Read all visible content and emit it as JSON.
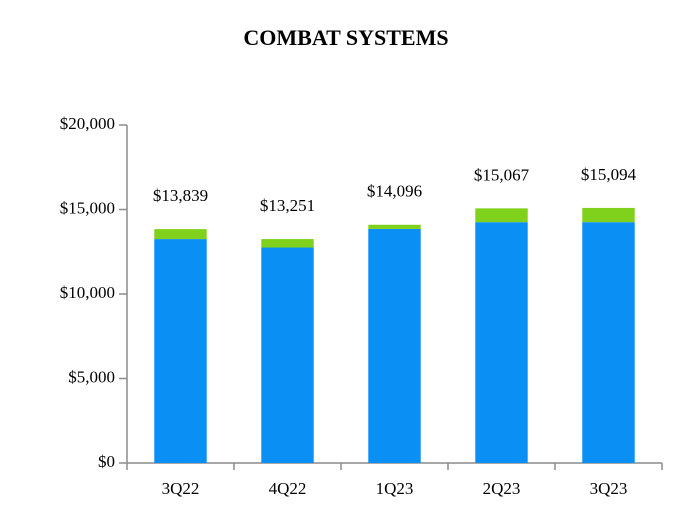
{
  "chart_data": {
    "type": "stacked_bar",
    "title": "COMBAT SYSTEMS",
    "categories": [
      "3Q22",
      "4Q22",
      "1Q23",
      "2Q23",
      "3Q23"
    ],
    "series": [
      {
        "color": "#0a8ff5",
        "values": [
          13250,
          12750,
          13850,
          14250,
          14250
        ]
      },
      {
        "color": "#7fd11b",
        "values": [
          589,
          501,
          246,
          817,
          844
        ]
      }
    ],
    "totals": [
      13839,
      13251,
      14096,
      15067,
      15094
    ],
    "total_labels": [
      "$13,839",
      "$13,251",
      "$14,096",
      "$15,067",
      "$15,094"
    ],
    "ylim": [
      0,
      20000
    ],
    "yticks": [
      {
        "value": 0,
        "label": "$0"
      },
      {
        "value": 5000,
        "label": "$5,000"
      },
      {
        "value": 10000,
        "label": "$10,000"
      },
      {
        "value": 15000,
        "label": "$15,000"
      },
      {
        "value": 20000,
        "label": "$20,000"
      }
    ],
    "grid": false
  }
}
